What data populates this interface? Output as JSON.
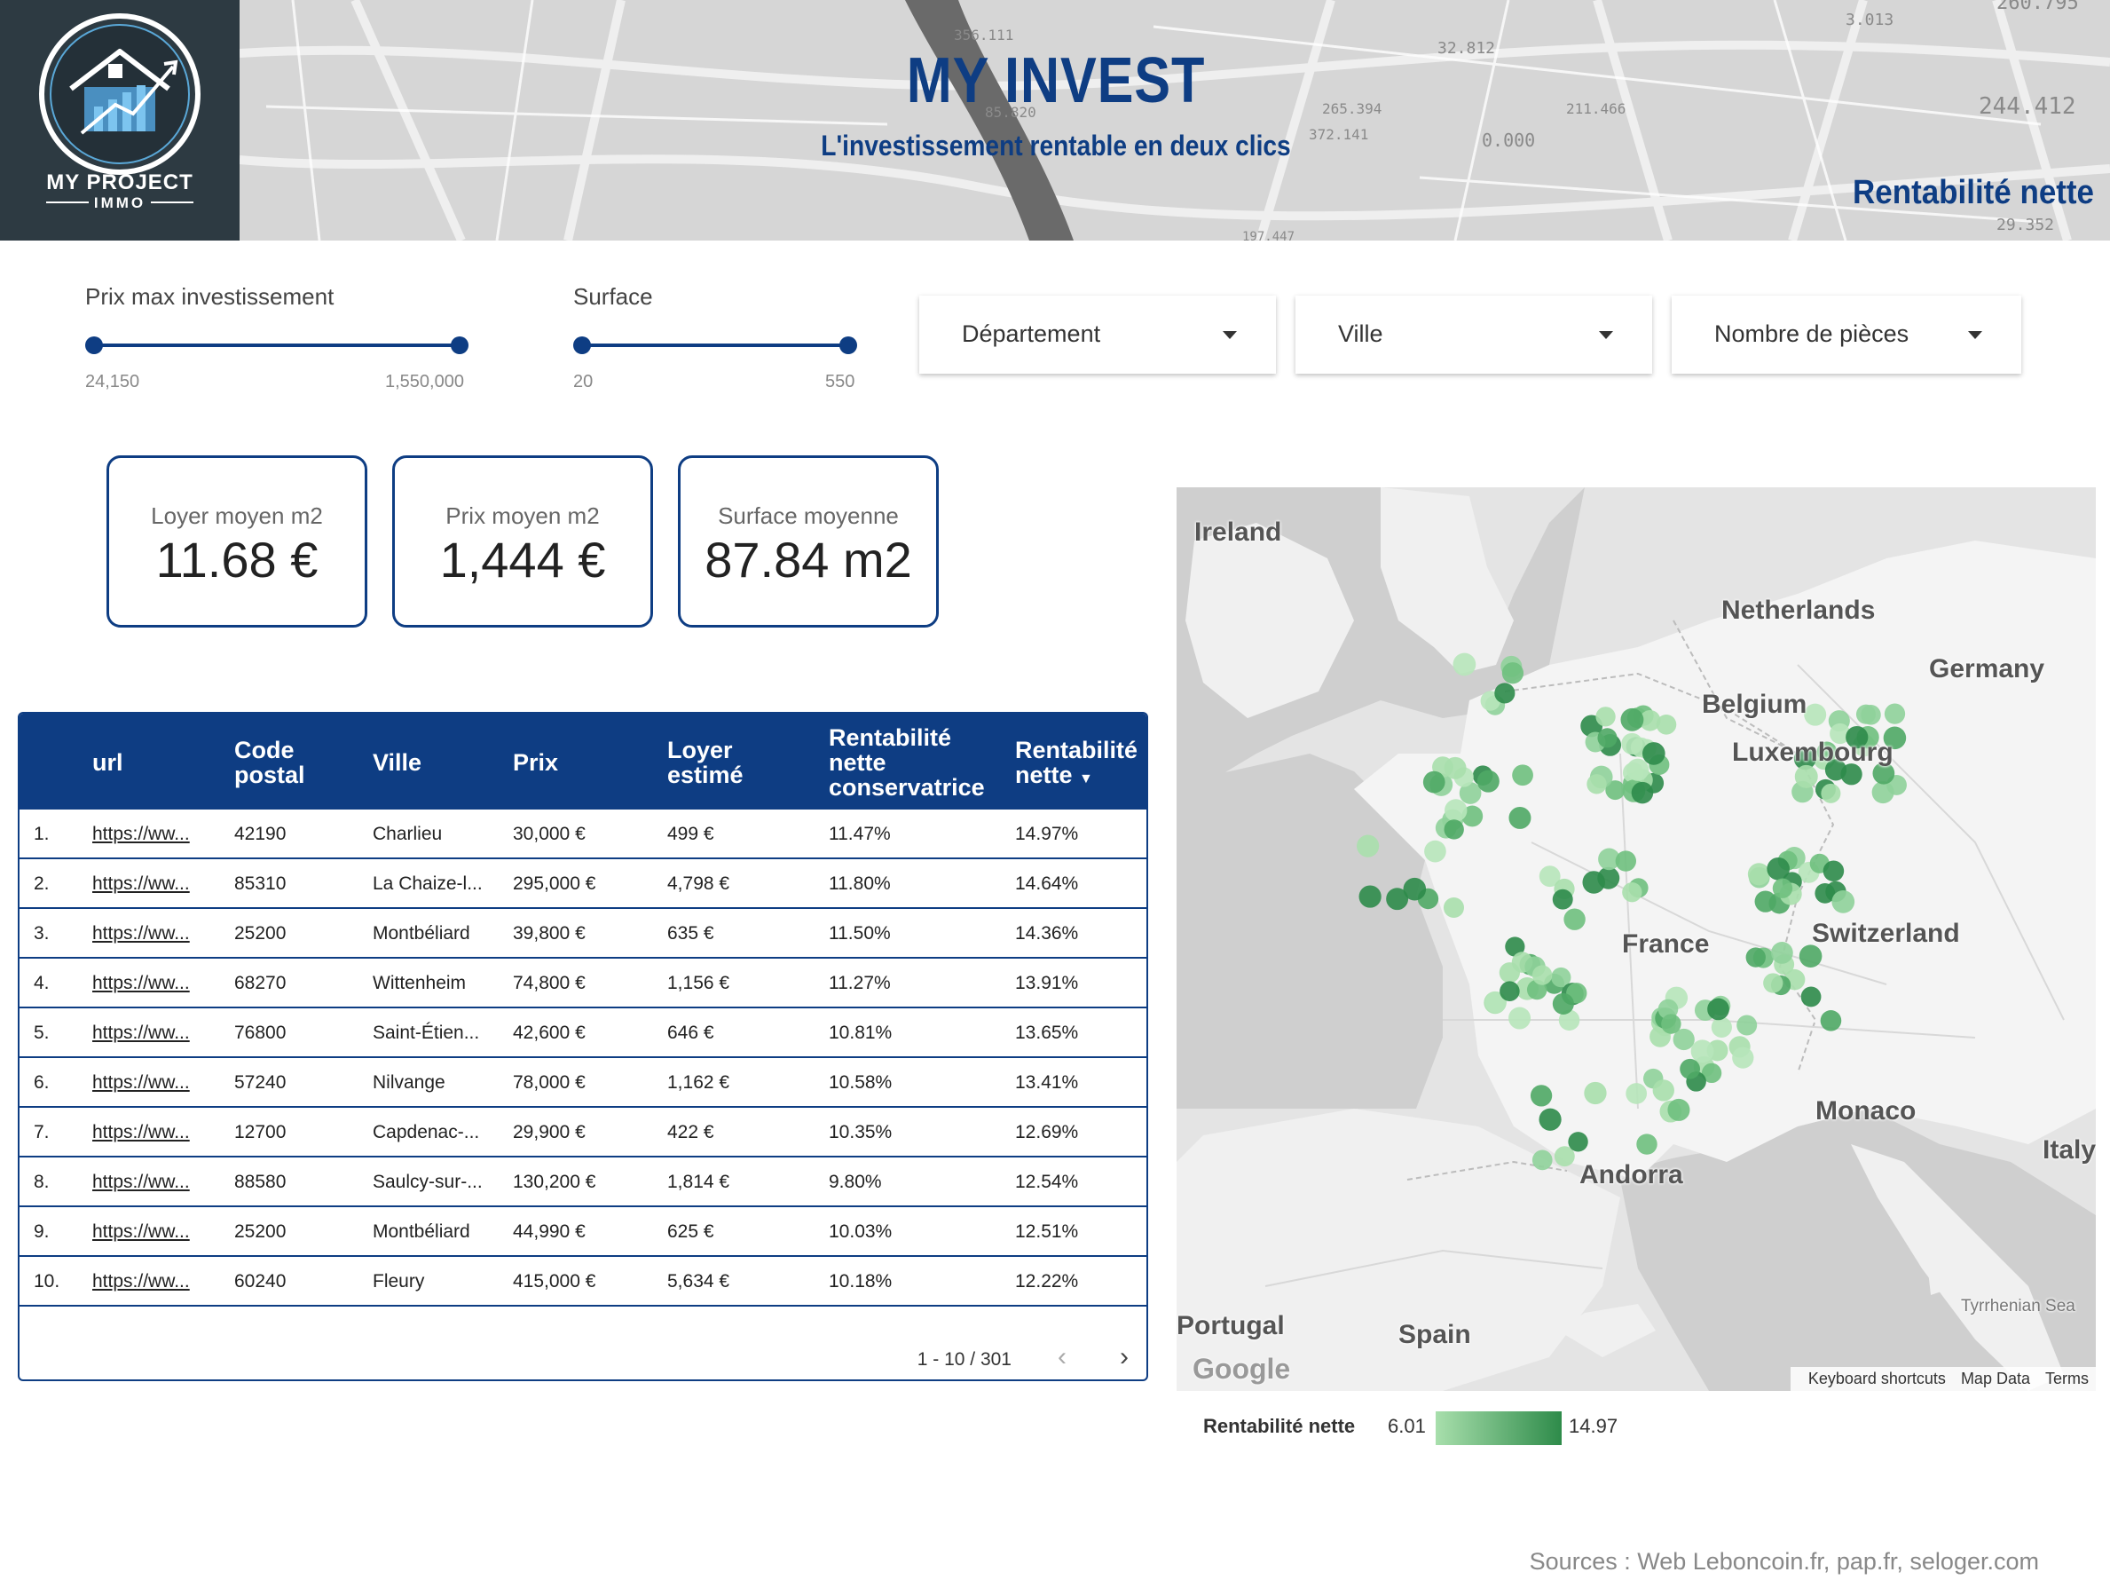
{
  "header": {
    "logo_line1": "MY PROJECT",
    "logo_line2": "IMMO",
    "title": "MY INVEST",
    "subtitle": "L'investissement rentable en deux clics",
    "section_label": "Rentabilité nette",
    "background_numbers": [
      "356.111",
      "85.820",
      "265.394",
      "372.141",
      "211.466",
      "0.000",
      "3.013",
      "244.412",
      "32.812",
      "29.352",
      "197.447",
      "260.795"
    ]
  },
  "filters": {
    "price_slider": {
      "label": "Prix max investissement",
      "min_label": "24,150",
      "max_label": "1,550,000",
      "range": [
        24150,
        1550000
      ],
      "selected": [
        24150,
        1550000
      ]
    },
    "surface_slider": {
      "label": "Surface",
      "min_label": "20",
      "max_label": "550",
      "range": [
        20,
        550
      ],
      "selected": [
        20,
        550
      ]
    },
    "dropdowns": [
      {
        "label": "Département"
      },
      {
        "label": "Ville"
      },
      {
        "label": "Nombre de pièces"
      }
    ]
  },
  "kpis": [
    {
      "label": "Loyer moyen m2",
      "value": "11.68 €"
    },
    {
      "label": "Prix moyen m2",
      "value": "1,444 €"
    },
    {
      "label": "Surface moyenne",
      "value": "87.84 m2"
    }
  ],
  "table": {
    "headers": {
      "url": "url",
      "code_postal": [
        "Code",
        "postal"
      ],
      "ville": "Ville",
      "prix": "Prix",
      "loyer": [
        "Loyer",
        "estimé"
      ],
      "rent_cons": [
        "Rentabilité",
        "nette",
        "conservatrice"
      ],
      "rent_net": [
        "Rentabilité",
        "nette"
      ]
    },
    "sort_icon": "sort-desc-icon",
    "rows": [
      [
        "1.",
        "https://ww...",
        "42190",
        "Charlieu",
        "30,000 €",
        "499 €",
        "11.47%",
        "14.97%"
      ],
      [
        "2.",
        "https://ww...",
        "85310",
        "La Chaize-l...",
        "295,000 €",
        "4,798 €",
        "11.80%",
        "14.64%"
      ],
      [
        "3.",
        "https://ww...",
        "25200",
        "Montbéliard",
        "39,800 €",
        "635 €",
        "11.50%",
        "14.36%"
      ],
      [
        "4.",
        "https://ww...",
        "68270",
        "Wittenheim",
        "74,800 €",
        "1,156 €",
        "11.27%",
        "13.91%"
      ],
      [
        "5.",
        "https://ww...",
        "76800",
        "Saint-Étien...",
        "42,600 €",
        "646 €",
        "10.81%",
        "13.65%"
      ],
      [
        "6.",
        "https://ww...",
        "57240",
        "Nilvange",
        "78,000 €",
        "1,162 €",
        "10.58%",
        "13.41%"
      ],
      [
        "7.",
        "https://ww...",
        "12700",
        "Capdenac-...",
        "29,900 €",
        "422 €",
        "10.35%",
        "12.69%"
      ],
      [
        "8.",
        "https://ww...",
        "88580",
        "Saulcy-sur-...",
        "130,200 €",
        "1,814 €",
        "9.80%",
        "12.54%"
      ],
      [
        "9.",
        "https://ww...",
        "25200",
        "Montbéliard",
        "44,990 €",
        "625 €",
        "10.03%",
        "12.51%"
      ],
      [
        "10.",
        "https://ww...",
        "60240",
        "Fleury",
        "415,000 €",
        "5,634 €",
        "10.18%",
        "12.22%"
      ]
    ],
    "pagination": "1 - 10 / 301"
  },
  "map": {
    "labels": {
      "ireland": "Ireland",
      "netherlands": "Netherlands",
      "germany": "Germany",
      "belgium": "Belgium",
      "luxembourg": "Luxembourg",
      "switzerland": "Switzerland",
      "france": "France",
      "monaco": "Monaco",
      "italy": "Italy",
      "andorra": "Andorra",
      "portugal": "Portugal",
      "spain": "Spain",
      "tyrrhenian": "Tyrrhenian Sea"
    },
    "attribution": [
      "Keyboard shortcuts",
      "Map Data",
      "Terms"
    ],
    "google": "Google",
    "legend": {
      "title": "Rentabilité nette",
      "min": "6.01",
      "max": "14.97",
      "color_low": "#a8dfac",
      "color_high": "#2e8b4a"
    }
  },
  "footer": {
    "sources": "Sources : Web Leboncoin.fr, pap.fr, seloger.com"
  },
  "colors": {
    "brand": "#0e3d83",
    "logo_bg": "#2d3a42"
  }
}
